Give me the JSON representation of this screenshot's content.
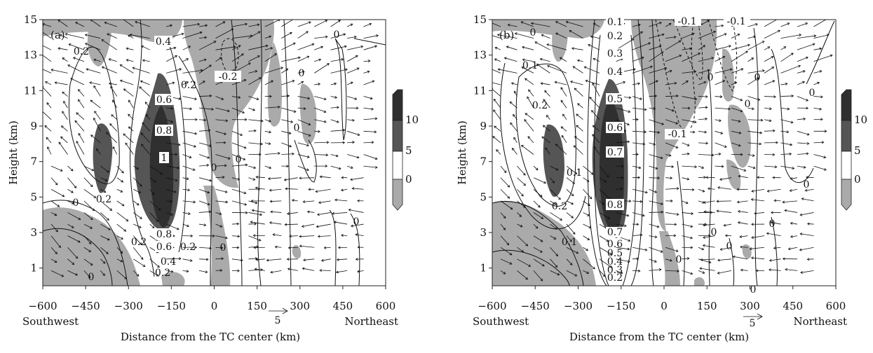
{
  "chart_data": [
    {
      "type": "contour",
      "panel_label": "(a)",
      "xlabel": "Distance from the TC center (km)",
      "ylabel": "Height (km)",
      "xlim": [
        -600,
        600
      ],
      "ylim": [
        0,
        15
      ],
      "x_ticks": [
        "-600",
        "-450",
        "-300",
        "-150",
        "0",
        "150",
        "300",
        "450",
        "600"
      ],
      "y_ticks": [
        "1",
        "3",
        "5",
        "7",
        "9",
        "11",
        "13",
        "15"
      ],
      "left_note": "Southwest",
      "right_note": "Northeast",
      "ref_vector_label": "5",
      "contour_labels": [
        "0.4",
        "0.2",
        "0.2",
        "0.6",
        "0.8",
        "1",
        "0.2",
        "0.8",
        "0.6",
        "0.4",
        "0.2",
        "0.2",
        "0.2",
        "0",
        "0",
        "0",
        "0",
        "0",
        "0",
        "0",
        "-0.2",
        "0",
        "0"
      ],
      "colorbar": {
        "levels": [
          "0",
          "5",
          "10"
        ],
        "colors": [
          "#aaaaaa",
          "#ffffff",
          "#555555",
          "#2f2f2f"
        ]
      }
    },
    {
      "type": "contour",
      "panel_label": "(b)",
      "xlabel": "Distance from the TC center (km)",
      "ylabel": "Height (km)",
      "xlim": [
        -600,
        600
      ],
      "ylim": [
        0,
        15
      ],
      "x_ticks": [
        "-600",
        "-450",
        "-300",
        "-150",
        "0",
        "150",
        "300",
        "450",
        "600"
      ],
      "y_ticks": [
        "1",
        "3",
        "5",
        "7",
        "9",
        "11",
        "13",
        "15"
      ],
      "left_note": "Southwest",
      "right_note": "Northeast",
      "ref_vector_label": "5",
      "contour_labels": [
        "0.1",
        "0.2",
        "0.3",
        "0.4",
        "0.5",
        "0.6",
        "0.7",
        "0.8",
        "0.7",
        "0.6",
        "0.5",
        "0.4",
        "0.3",
        "0.2",
        "0.1",
        "0.1",
        "0.2",
        "0.2",
        "0.1",
        "-0.1",
        "-0.1",
        "-0.1",
        "0",
        "0",
        "0",
        "0",
        "0",
        "0",
        "0",
        "0",
        "0",
        "0",
        "0"
      ],
      "colorbar": {
        "levels": [
          "0",
          "5",
          "10"
        ],
        "colors": [
          "#aaaaaa",
          "#ffffff",
          "#555555",
          "#2f2f2f"
        ]
      }
    }
  ]
}
